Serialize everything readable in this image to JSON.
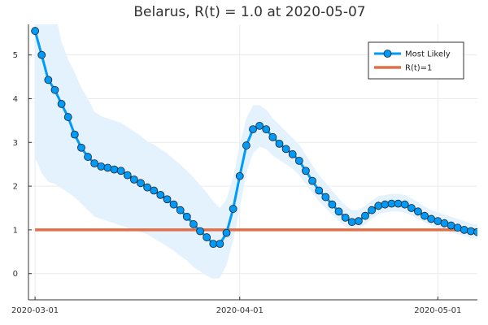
{
  "chart_data": {
    "type": "line",
    "title": "Belarus, R(t) = 1.0 at 2020-05-07",
    "xlabel": "",
    "ylabel": "",
    "xlim_days": [
      -1,
      67
    ],
    "ylim": [
      -0.6,
      5.7
    ],
    "x_ticks": [
      {
        "label": "2020-03-01",
        "day": 0
      },
      {
        "label": "2020-04-01",
        "day": 31
      },
      {
        "label": "2020-05-01",
        "day": 61
      }
    ],
    "y_ticks": [
      0,
      1,
      2,
      3,
      4,
      5
    ],
    "grid": true,
    "legend_position": "top-right",
    "colors": {
      "most_likely": "#009af9",
      "reference": "#e26f46",
      "band": "#e3f2fd",
      "grid": "#ebebeb",
      "axis": "#333333"
    },
    "series": [
      {
        "name": "Most Likely",
        "start_date": "2020-03-01",
        "values": [
          5.55,
          5.0,
          4.43,
          4.2,
          3.88,
          3.58,
          3.18,
          2.88,
          2.67,
          2.52,
          2.45,
          2.42,
          2.38,
          2.35,
          2.25,
          2.15,
          2.07,
          1.97,
          1.9,
          1.8,
          1.7,
          1.58,
          1.45,
          1.3,
          1.13,
          0.97,
          0.83,
          0.68,
          0.68,
          0.93,
          1.48,
          2.23,
          2.93,
          3.3,
          3.38,
          3.3,
          3.12,
          2.97,
          2.85,
          2.73,
          2.58,
          2.35,
          2.12,
          1.9,
          1.75,
          1.58,
          1.42,
          1.28,
          1.18,
          1.2,
          1.32,
          1.45,
          1.55,
          1.58,
          1.6,
          1.6,
          1.58,
          1.5,
          1.42,
          1.32,
          1.25,
          1.2,
          1.15,
          1.1,
          1.05,
          1.0,
          0.97,
          0.95
        ]
      },
      {
        "name": "R(t)=1",
        "values": [
          1.0,
          1.0
        ]
      }
    ],
    "band": {
      "lower": [
        2.65,
        2.3,
        2.1,
        2.05,
        1.95,
        1.85,
        1.75,
        1.6,
        1.45,
        1.3,
        1.25,
        1.2,
        1.15,
        1.1,
        1.05,
        1.0,
        0.95,
        0.9,
        0.8,
        0.72,
        0.62,
        0.52,
        0.4,
        0.3,
        0.15,
        0.05,
        -0.05,
        -0.12,
        -0.1,
        0.2,
        0.75,
        1.5,
        2.3,
        2.75,
        2.9,
        2.85,
        2.7,
        2.6,
        2.5,
        2.4,
        2.25,
        2.05,
        1.85,
        1.65,
        1.5,
        1.35,
        1.2,
        1.08,
        1.0,
        1.02,
        1.12,
        1.25,
        1.35,
        1.4,
        1.42,
        1.42,
        1.4,
        1.33,
        1.25,
        1.17,
        1.1,
        1.05,
        1.0,
        0.95,
        0.9,
        0.86,
        0.82,
        0.8
      ],
      "upper": [
        6.0,
        6.0,
        6.0,
        6.0,
        5.3,
        4.9,
        4.6,
        4.25,
        4.0,
        3.7,
        3.6,
        3.55,
        3.5,
        3.45,
        3.35,
        3.25,
        3.15,
        3.02,
        2.95,
        2.85,
        2.75,
        2.62,
        2.5,
        2.35,
        2.2,
        2.02,
        1.85,
        1.65,
        1.5,
        1.7,
        2.2,
        2.95,
        3.55,
        3.85,
        3.85,
        3.75,
        3.55,
        3.4,
        3.25,
        3.1,
        2.95,
        2.72,
        2.48,
        2.25,
        2.08,
        1.9,
        1.72,
        1.56,
        1.45,
        1.45,
        1.55,
        1.67,
        1.77,
        1.8,
        1.82,
        1.82,
        1.8,
        1.72,
        1.63,
        1.53,
        1.45,
        1.4,
        1.35,
        1.3,
        1.25,
        1.2,
        1.15,
        1.12
      ]
    }
  }
}
